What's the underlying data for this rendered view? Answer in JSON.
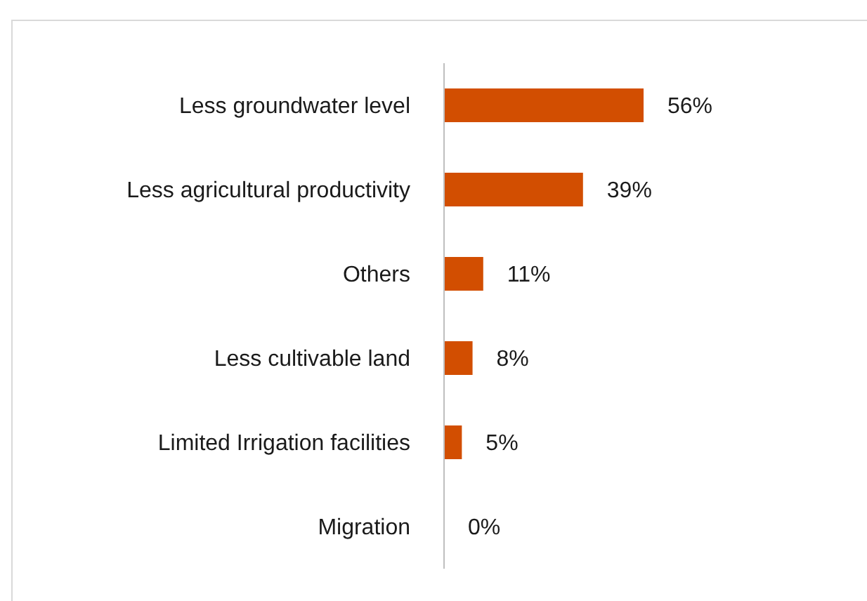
{
  "chart_data": {
    "type": "bar",
    "orientation": "horizontal",
    "categories": [
      "Less groundwater level",
      "Less agricultural productivity",
      "Others",
      "Less cultivable land",
      "Limited Irrigation facilities",
      "Migration"
    ],
    "values": [
      56,
      39,
      11,
      8,
      5,
      0
    ],
    "value_labels": [
      "56%",
      "39%",
      "11%",
      "8%",
      "5%",
      "0%"
    ],
    "color": "#d24e01"
  }
}
